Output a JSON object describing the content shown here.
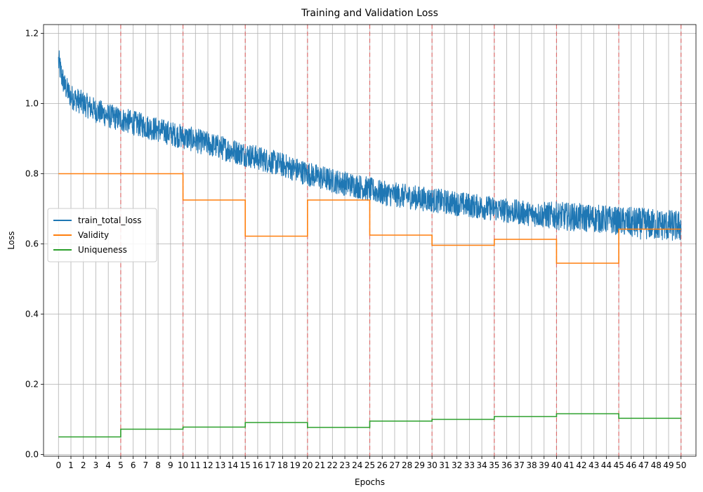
{
  "chart_data": {
    "type": "line",
    "title": "Training and Validation Loss",
    "xlabel": "Epochs",
    "ylabel": "Loss",
    "xlim": [
      -1.2,
      51.2
    ],
    "ylim": [
      -0.005,
      1.225
    ],
    "xticks": [
      0,
      1,
      2,
      3,
      4,
      5,
      6,
      7,
      8,
      9,
      10,
      11,
      12,
      13,
      14,
      15,
      16,
      17,
      18,
      19,
      20,
      21,
      22,
      23,
      24,
      25,
      26,
      27,
      28,
      29,
      30,
      31,
      32,
      33,
      34,
      35,
      36,
      37,
      38,
      39,
      40,
      41,
      42,
      43,
      44,
      45,
      46,
      47,
      48,
      49,
      50
    ],
    "yticks": [
      0.0,
      0.2,
      0.4,
      0.6,
      0.8,
      1.0,
      1.2
    ],
    "ytick_labels": [
      "0.0",
      "0.2",
      "0.4",
      "0.6",
      "0.8",
      "1.0",
      "1.2"
    ],
    "grid": true,
    "legend_position": "center-left",
    "vlines": {
      "x": [
        5,
        10,
        15,
        20,
        25,
        30,
        35,
        40,
        45,
        50
      ],
      "color": "#e06060",
      "style": "dashed"
    },
    "series": [
      {
        "name": "train_total_loss",
        "color": "#1f77b4",
        "kind": "noisy-line",
        "x": [
          0,
          0.25,
          0.5,
          1,
          2,
          3,
          4,
          5,
          6,
          7,
          8,
          9,
          10,
          12,
          14,
          15,
          16,
          18,
          20,
          22,
          24,
          25,
          26,
          28,
          30,
          32,
          34,
          35,
          36,
          38,
          40,
          42,
          44,
          45,
          46,
          48,
          50
        ],
        "y": [
          1.12,
          1.08,
          1.05,
          1.02,
          1.0,
          0.98,
          0.965,
          0.955,
          0.945,
          0.935,
          0.925,
          0.915,
          0.905,
          0.885,
          0.865,
          0.855,
          0.845,
          0.825,
          0.8,
          0.78,
          0.765,
          0.755,
          0.745,
          0.735,
          0.725,
          0.715,
          0.705,
          0.7,
          0.695,
          0.685,
          0.68,
          0.675,
          0.67,
          0.665,
          0.66,
          0.655,
          0.65
        ],
        "band": [
          0.04,
          0.04,
          0.035,
          0.035,
          0.035,
          0.035,
          0.035,
          0.035,
          0.035,
          0.035,
          0.035,
          0.035,
          0.035,
          0.035,
          0.035,
          0.035,
          0.035,
          0.035,
          0.035,
          0.035,
          0.035,
          0.035,
          0.035,
          0.035,
          0.035,
          0.035,
          0.035,
          0.035,
          0.035,
          0.035,
          0.04,
          0.04,
          0.04,
          0.04,
          0.045,
          0.045,
          0.045
        ]
      },
      {
        "name": "Validity",
        "color": "#ff7f0e",
        "kind": "step",
        "x": [
          0,
          5,
          10,
          15,
          20,
          25,
          30,
          35,
          40,
          45,
          50
        ],
        "y": [
          0.8,
          0.8,
          0.725,
          0.622,
          0.725,
          0.625,
          0.596,
          0.613,
          0.545,
          0.642,
          0.642
        ]
      },
      {
        "name": "Uniqueness",
        "color": "#2ca02c",
        "kind": "step",
        "x": [
          0,
          5,
          10,
          15,
          20,
          25,
          30,
          35,
          40,
          45,
          50
        ],
        "y": [
          0.05,
          0.072,
          0.078,
          0.091,
          0.077,
          0.095,
          0.1,
          0.108,
          0.116,
          0.103,
          0.103
        ]
      }
    ]
  }
}
